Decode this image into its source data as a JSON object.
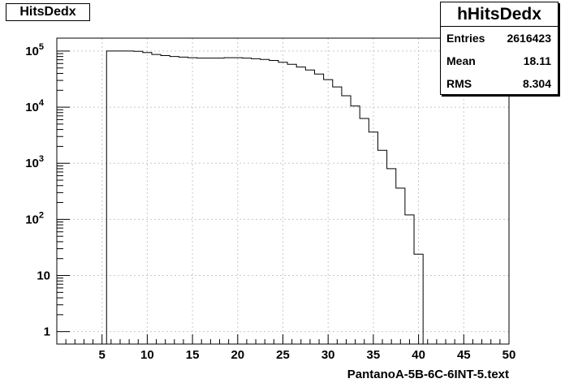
{
  "title_box": "HitsDedx",
  "stats": {
    "name": "hHitsDedx",
    "rows": [
      {
        "label": "Entries",
        "value": "2616423"
      },
      {
        "label": "Mean",
        "value": "18.11"
      },
      {
        "label": "RMS",
        "value": "8.304"
      }
    ]
  },
  "chart_data": {
    "type": "bar",
    "title": "HitsDedx",
    "xlabel": "PantanoA-5B-6C-6INT-5.text",
    "ylabel": "",
    "xlim": [
      0,
      50
    ],
    "ylim": [
      0.6,
      170000
    ],
    "yscale": "log",
    "grid": true,
    "xticks": [
      5,
      10,
      15,
      20,
      25,
      30,
      35,
      40,
      45,
      50
    ],
    "yticks": [
      {
        "value": 1,
        "base": "1",
        "exp": ""
      },
      {
        "value": 10,
        "base": "10",
        "exp": ""
      },
      {
        "value": 100,
        "base": "10",
        "exp": "2"
      },
      {
        "value": 1000,
        "base": "10",
        "exp": "3"
      },
      {
        "value": 10000,
        "base": "10",
        "exp": "4"
      },
      {
        "value": 100000,
        "base": "10",
        "exp": "5"
      }
    ],
    "bin_width": 1,
    "bin_edges_start": 5.5,
    "values": [
      100000,
      100000,
      100000,
      99000,
      94000,
      87000,
      83000,
      80000,
      78000,
      76000,
      75000,
      75000,
      75000,
      76000,
      76000,
      75000,
      73000,
      71000,
      68000,
      63000,
      58000,
      52000,
      46000,
      39000,
      31000,
      23000,
      16000,
      10500,
      6300,
      3600,
      1700,
      800,
      360,
      120,
      24
    ],
    "line_color": "#000000",
    "grid_color": "#c8c8c8"
  }
}
